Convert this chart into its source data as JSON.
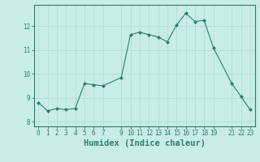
{
  "xlabel": "Humidex (Indice chaleur)",
  "x": [
    0,
    1,
    2,
    3,
    4,
    5,
    6,
    7,
    9,
    10,
    11,
    12,
    13,
    14,
    15,
    16,
    17,
    18,
    19,
    21,
    22,
    23
  ],
  "y": [
    8.8,
    8.45,
    8.55,
    8.5,
    8.55,
    9.6,
    9.55,
    9.5,
    9.85,
    11.65,
    11.75,
    11.65,
    11.55,
    11.35,
    12.05,
    12.55,
    12.2,
    12.25,
    11.1,
    9.6,
    9.05,
    8.5
  ],
  "line_color": "#2e7d6e",
  "marker_color": "#2e7d6e",
  "bg_color": "#c8ecea",
  "grid_color": "#b0ddd8",
  "axis_color": "#2e7d6e",
  "ylim": [
    7.8,
    12.9
  ],
  "xlim": [
    -0.5,
    23.5
  ],
  "yticks": [
    8,
    9,
    10,
    11,
    12
  ],
  "xticks": [
    0,
    1,
    2,
    3,
    4,
    5,
    6,
    7,
    9,
    10,
    11,
    12,
    13,
    14,
    15,
    16,
    17,
    18,
    19,
    21,
    22,
    23
  ],
  "tick_label_color": "#2e7d6e",
  "xlabel_color": "#2e7d6e",
  "xlabel_fontsize": 7.5,
  "tick_fontsize": 5.5
}
